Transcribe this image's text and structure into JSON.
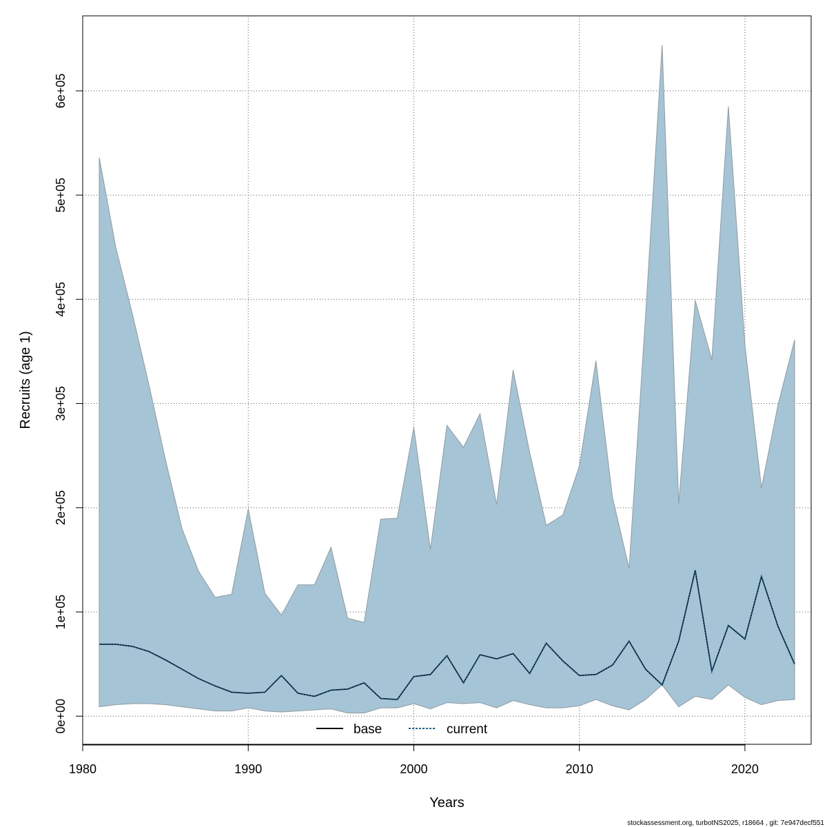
{
  "chart_data": {
    "type": "area",
    "xlabel": "Years",
    "ylabel": "Recruits (age 1)",
    "xlim": [
      1980,
      2024
    ],
    "ylim": [
      -27000,
      672000
    ],
    "x_ticks": [
      1980,
      1990,
      2000,
      2010,
      2020
    ],
    "x_tick_labels": [
      "1980",
      "1990",
      "2000",
      "2010",
      "2020"
    ],
    "y_ticks": [
      0,
      100000,
      200000,
      300000,
      400000,
      500000,
      600000
    ],
    "y_tick_labels": [
      "0e+00",
      "1e+05",
      "2e+05",
      "3e+05",
      "4e+05",
      "5e+05",
      "6e+05"
    ],
    "grid": true,
    "legend_position": "bottom-center",
    "x": [
      1981,
      1982,
      1983,
      1984,
      1985,
      1986,
      1987,
      1988,
      1989,
      1990,
      1991,
      1992,
      1993,
      1994,
      1995,
      1996,
      1997,
      1998,
      1999,
      2000,
      2001,
      2002,
      2003,
      2004,
      2005,
      2006,
      2007,
      2008,
      2009,
      2010,
      2011,
      2012,
      2013,
      2014,
      2015,
      2016,
      2017,
      2018,
      2019,
      2020,
      2021,
      2022,
      2023
    ],
    "band": {
      "upper": [
        536000,
        450000,
        386000,
        318000,
        246000,
        180000,
        139000,
        114000,
        117000,
        199000,
        118000,
        97000,
        126000,
        126000,
        162000,
        94000,
        90000,
        189000,
        190000,
        277000,
        160000,
        279000,
        258000,
        290000,
        203000,
        332000,
        253000,
        183000,
        193000,
        240000,
        341000,
        210000,
        142000,
        385000,
        644000,
        204000,
        399000,
        342000,
        585000,
        356000,
        219000,
        299000,
        361000
      ],
      "lower": [
        9000,
        11000,
        12000,
        12000,
        11000,
        9000,
        7000,
        5000,
        5000,
        8000,
        5000,
        4000,
        5000,
        6000,
        7000,
        3000,
        3000,
        8000,
        8000,
        12000,
        7000,
        13000,
        12000,
        13000,
        8000,
        15000,
        11000,
        8000,
        8000,
        10000,
        16000,
        10000,
        6000,
        16000,
        30000,
        9000,
        19000,
        16000,
        30000,
        18000,
        11000,
        15000,
        16000
      ],
      "fill_color": "#A5C4D5",
      "edge_color": "#8F9A9F"
    },
    "series": [
      {
        "name": "base",
        "values": [
          69000,
          69000,
          67000,
          62000,
          54000,
          45000,
          36000,
          29000,
          23000,
          22000,
          23000,
          39000,
          22000,
          19000,
          25000,
          26000,
          32000,
          17000,
          16000,
          38000,
          40000,
          58000,
          32000,
          59000,
          55000,
          60000,
          41000,
          70000,
          53000,
          39000,
          40000,
          49000,
          72000,
          45000,
          30000,
          72000,
          140000,
          43000,
          87000,
          74000,
          134000,
          86000,
          50000
        ],
        "color": "#000000",
        "style": "solid"
      },
      {
        "name": "current",
        "values": [
          69000,
          69000,
          67000,
          62000,
          54000,
          45000,
          36000,
          29000,
          23000,
          22000,
          23000,
          39000,
          22000,
          19000,
          25000,
          26000,
          32000,
          17000,
          16000,
          38000,
          40000,
          58000,
          32000,
          59000,
          55000,
          60000,
          41000,
          70000,
          53000,
          39000,
          40000,
          49000,
          72000,
          45000,
          30000,
          72000,
          140000,
          43000,
          87000,
          74000,
          134000,
          86000,
          50000
        ],
        "color": "#1F5F8B",
        "style": "dotted"
      }
    ]
  },
  "footer": "stockassessment.org, turbotNS2025, r18664 , git: 7e947decf551"
}
